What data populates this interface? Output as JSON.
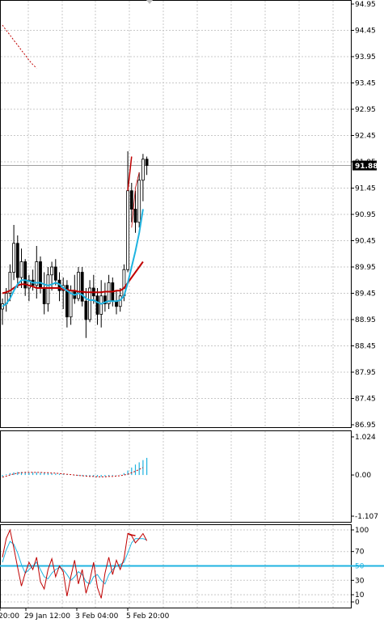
{
  "chart_data": [
    {
      "panel": "price",
      "type": "candlestick",
      "symbol_hidden": true,
      "ylim": [
        86.95,
        94.95
      ],
      "yticks": [
        "94.95",
        "94.45",
        "93.95",
        "93.45",
        "92.95",
        "92.45",
        "91.95",
        "91.45",
        "90.95",
        "90.45",
        "89.95",
        "89.45",
        "88.95",
        "88.45",
        "87.95",
        "87.45",
        "86.95"
      ],
      "current_price": "91.88",
      "grid": true,
      "candles": [
        {
          "o": 89.15,
          "h": 89.35,
          "l": 88.85,
          "c": 89.25
        },
        {
          "o": 89.25,
          "h": 89.55,
          "l": 89.1,
          "c": 89.45
        },
        {
          "o": 89.45,
          "h": 90.0,
          "l": 89.3,
          "c": 89.85
        },
        {
          "o": 89.85,
          "h": 90.75,
          "l": 89.7,
          "c": 90.4
        },
        {
          "o": 90.4,
          "h": 90.55,
          "l": 89.55,
          "c": 89.75
        },
        {
          "o": 89.75,
          "h": 90.3,
          "l": 89.55,
          "c": 90.05
        },
        {
          "o": 90.05,
          "h": 90.1,
          "l": 89.4,
          "c": 89.55
        },
        {
          "o": 89.55,
          "h": 89.8,
          "l": 89.3,
          "c": 89.7
        },
        {
          "o": 89.7,
          "h": 89.9,
          "l": 89.5,
          "c": 89.6
        },
        {
          "o": 89.6,
          "h": 90.35,
          "l": 89.35,
          "c": 90.05
        },
        {
          "o": 90.05,
          "h": 90.15,
          "l": 89.45,
          "c": 89.55
        },
        {
          "o": 89.55,
          "h": 89.85,
          "l": 89.05,
          "c": 89.25
        },
        {
          "o": 89.25,
          "h": 89.95,
          "l": 89.1,
          "c": 89.8
        },
        {
          "o": 89.8,
          "h": 90.05,
          "l": 89.5,
          "c": 89.95
        },
        {
          "o": 89.95,
          "h": 90.1,
          "l": 89.6,
          "c": 89.7
        },
        {
          "o": 89.7,
          "h": 89.85,
          "l": 89.3,
          "c": 89.5
        },
        {
          "o": 89.5,
          "h": 89.75,
          "l": 89.15,
          "c": 89.6
        },
        {
          "o": 89.6,
          "h": 89.7,
          "l": 88.8,
          "c": 89.0
        },
        {
          "o": 89.0,
          "h": 89.6,
          "l": 88.85,
          "c": 89.5
        },
        {
          "o": 89.5,
          "h": 89.8,
          "l": 89.25,
          "c": 89.35
        },
        {
          "o": 89.35,
          "h": 89.95,
          "l": 89.3,
          "c": 89.85
        },
        {
          "o": 89.85,
          "h": 89.95,
          "l": 89.2,
          "c": 89.3
        },
        {
          "o": 89.3,
          "h": 89.55,
          "l": 88.6,
          "c": 88.95
        },
        {
          "o": 88.95,
          "h": 89.7,
          "l": 88.9,
          "c": 89.55
        },
        {
          "o": 89.55,
          "h": 89.8,
          "l": 89.25,
          "c": 89.4
        },
        {
          "o": 89.4,
          "h": 89.55,
          "l": 88.85,
          "c": 89.05
        },
        {
          "o": 89.05,
          "h": 89.7,
          "l": 88.8,
          "c": 89.4
        },
        {
          "o": 89.4,
          "h": 89.65,
          "l": 89.1,
          "c": 89.25
        },
        {
          "o": 89.25,
          "h": 89.8,
          "l": 89.15,
          "c": 89.65
        },
        {
          "o": 89.65,
          "h": 89.75,
          "l": 89.2,
          "c": 89.3
        },
        {
          "o": 89.3,
          "h": 89.5,
          "l": 89.05,
          "c": 89.2
        },
        {
          "o": 89.2,
          "h": 89.55,
          "l": 89.1,
          "c": 89.4
        },
        {
          "o": 89.4,
          "h": 90.0,
          "l": 89.3,
          "c": 89.9
        },
        {
          "o": 89.9,
          "h": 92.15,
          "l": 89.85,
          "c": 91.4
        },
        {
          "o": 91.4,
          "h": 91.55,
          "l": 90.8,
          "c": 91.05
        },
        {
          "o": 91.05,
          "h": 91.4,
          "l": 90.6,
          "c": 90.8
        },
        {
          "o": 90.8,
          "h": 91.75,
          "l": 90.7,
          "c": 91.6
        },
        {
          "o": 91.6,
          "h": 92.1,
          "l": 91.2,
          "c": 92.0
        },
        {
          "o": 92.0,
          "h": 92.05,
          "l": 91.7,
          "c": 91.88
        }
      ],
      "ma_dotted": [
        94.55,
        94.45,
        94.36,
        94.26,
        94.17,
        94.07,
        93.98,
        93.88,
        93.8,
        93.73
      ],
      "ma_red": [
        89.45,
        89.47,
        89.5,
        89.55,
        89.6,
        89.62,
        89.62,
        89.6,
        89.58,
        89.55,
        89.55,
        89.55,
        89.55,
        89.55,
        89.55,
        89.55,
        89.52,
        89.52,
        89.5,
        89.5,
        89.48,
        89.48,
        89.47,
        89.47,
        89.47,
        89.47,
        89.47,
        89.48,
        89.48,
        89.48,
        89.5,
        89.5,
        89.55,
        89.65,
        89.75,
        89.85,
        89.95,
        90.05
      ],
      "ma_cyan": [
        89.2,
        89.25,
        89.35,
        89.5,
        89.62,
        89.7,
        89.7,
        89.68,
        89.65,
        89.65,
        89.65,
        89.62,
        89.6,
        89.62,
        89.65,
        89.62,
        89.55,
        89.5,
        89.45,
        89.42,
        89.45,
        89.42,
        89.35,
        89.32,
        89.32,
        89.28,
        89.25,
        89.28,
        89.3,
        89.3,
        89.3,
        89.32,
        89.4,
        89.65,
        89.95,
        90.25,
        90.6,
        91.05
      ],
      "channel_upper": [
        91.4,
        92.05
      ],
      "channel_lower_thin": [
        90.7,
        91.45,
        91.75
      ]
    },
    {
      "panel": "macd",
      "type": "histogram",
      "ylim": [
        -1.107,
        1.024
      ],
      "yticks": [
        "1.024",
        "0.00",
        "-1.107"
      ],
      "grid": true,
      "histogram": [
        -0.05,
        0.02,
        0.05,
        0.07,
        0.08,
        0.08,
        0.08,
        0.07,
        0.07,
        0.07,
        0.06,
        0.06,
        0.05,
        0.05,
        0.04,
        0.03,
        0.02,
        0.01,
        0.0,
        -0.01,
        -0.02,
        -0.03,
        -0.04,
        -0.05,
        -0.05,
        -0.05,
        -0.05,
        -0.04,
        -0.03,
        -0.02,
        -0.01,
        0.01,
        0.05,
        0.12,
        0.2,
        0.28,
        0.34,
        0.4,
        0.46
      ],
      "signal": [
        -0.06,
        -0.03,
        0.0,
        0.03,
        0.05,
        0.06,
        0.07,
        0.07,
        0.07,
        0.07,
        0.07,
        0.06,
        0.06,
        0.05,
        0.05,
        0.04,
        0.03,
        0.02,
        0.01,
        0.0,
        -0.01,
        -0.02,
        -0.03,
        -0.04,
        -0.04,
        -0.05,
        -0.05,
        -0.05,
        -0.04,
        -0.04,
        -0.03,
        -0.02,
        0.0,
        0.02,
        0.06,
        0.1,
        0.15,
        0.2
      ]
    },
    {
      "panel": "stochastic",
      "type": "line",
      "ylim": [
        0,
        100
      ],
      "yticks": [
        "100",
        "70",
        "50",
        "30",
        "10",
        "0"
      ],
      "level": 50,
      "level_label": "50",
      "grid": true,
      "main": [
        62,
        88,
        100,
        75,
        48,
        22,
        40,
        55,
        45,
        62,
        28,
        18,
        45,
        60,
        35,
        50,
        42,
        8,
        35,
        58,
        25,
        45,
        12,
        30,
        55,
        20,
        5,
        40,
        62,
        38,
        58,
        45,
        60,
        95,
        92,
        82,
        88,
        95,
        85
      ],
      "signal": [
        55,
        72,
        84,
        80,
        68,
        52,
        40,
        45,
        50,
        55,
        45,
        35,
        32,
        40,
        45,
        48,
        45,
        38,
        30,
        35,
        42,
        38,
        28,
        25,
        35,
        38,
        30,
        25,
        38,
        45,
        50,
        52,
        55,
        68,
        82,
        88,
        88,
        88,
        86
      ],
      "channel_red": [
        95,
        93,
        92
      ]
    }
  ],
  "x_labels": [
    "20:00",
    "29 Jan 12:00",
    "3 Feb 04:00",
    "5 Feb 20:00"
  ]
}
